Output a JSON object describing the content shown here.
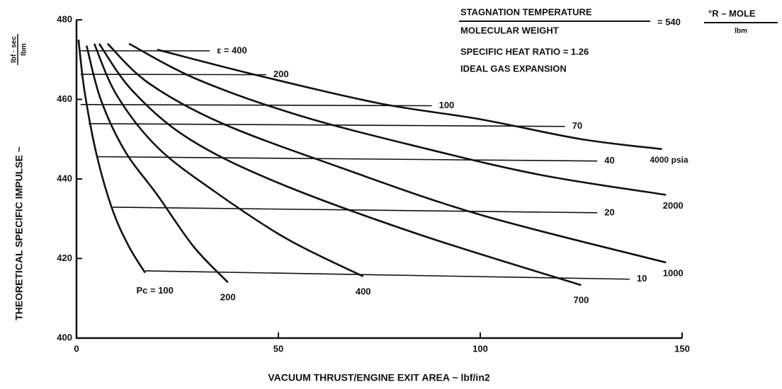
{
  "chart_data": {
    "type": "line",
    "xlabel": "VACUUM THRUST/ENGINE EXIT AREA ~ lbf/in2",
    "ylabel": "THEORETICAL SPECIFIC IMPULSE ~",
    "ylabel_units": [
      "lbf · sec",
      "lbm"
    ],
    "annotations": [
      "STAGNATION TEMPERATURE",
      "MOLECULAR WEIGHT",
      "= 540",
      "°R – MOLE",
      "lbm",
      "SPECIFIC HEAT RATIO = 1.26",
      "IDEAL GAS EXPANSION"
    ],
    "xlim": [
      0,
      150
    ],
    "xticks": [
      0,
      50,
      100,
      150
    ],
    "ylim": [
      400,
      480
    ],
    "yticks": [
      400,
      420,
      440,
      460,
      480
    ],
    "color": "#111111",
    "series": [
      {
        "name": "Pc = 100",
        "x": [
          0.5,
          2,
          5,
          9,
          13,
          17
        ],
        "values": [
          475,
          462,
          446,
          432,
          423,
          416.4
        ]
      },
      {
        "name": "200",
        "x": [
          2.5,
          6,
          12,
          20,
          29,
          37.5
        ],
        "values": [
          473.5,
          460,
          447,
          436,
          423,
          414
        ]
      },
      {
        "name": "400",
        "x": [
          4.4,
          10,
          20,
          34,
          52,
          71
        ],
        "values": [
          474,
          461,
          448,
          437,
          425,
          415.5
        ]
      },
      {
        "name": "700",
        "x": [
          5.6,
          14,
          28,
          50,
          85,
          125
        ],
        "values": [
          474,
          462,
          450,
          439,
          426,
          413.3
        ]
      },
      {
        "name": "1000",
        "x": [
          7.7,
          18,
          36,
          65,
          100,
          146
        ],
        "values": [
          474,
          464,
          454,
          443,
          431,
          419
        ]
      },
      {
        "name": "2000",
        "x": [
          13,
          30,
          55,
          85,
          115,
          146
        ],
        "values": [
          474,
          465,
          456,
          448,
          441,
          436
        ]
      },
      {
        "name": "4000 psia",
        "x": [
          20,
          45,
          75,
          100,
          125,
          145
        ],
        "values": [
          472.5,
          466,
          459,
          455,
          450,
          447.5
        ]
      },
      {
        "name": "ε = 400",
        "x": [
          1,
          33
        ],
        "values": [
          472.2,
          472.2
        ]
      },
      {
        "name": "200",
        "x": [
          1,
          47
        ],
        "values": [
          466.3,
          466.2
        ]
      },
      {
        "name": "100",
        "x": [
          1,
          88
        ],
        "values": [
          458.7,
          458.4
        ]
      },
      {
        "name": "70",
        "x": [
          3,
          121
        ],
        "values": [
          453.9,
          453.2
        ]
      },
      {
        "name": "40",
        "x": [
          5,
          129
        ],
        "values": [
          445.6,
          444.5
        ]
      },
      {
        "name": "20",
        "x": [
          9,
          129
        ],
        "values": [
          432.9,
          431.5
        ]
      },
      {
        "name": "10",
        "x": [
          17,
          137
        ],
        "values": [
          416.9,
          414.8
        ]
      }
    ]
  }
}
